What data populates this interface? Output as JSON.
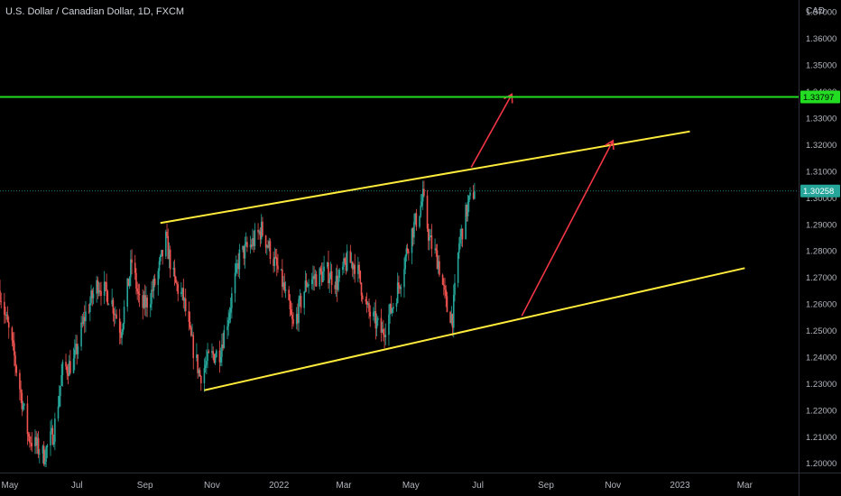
{
  "chart_data": {
    "type": "candlestick",
    "title": "U.S. Dollar / Canadian Dollar, 1D, FXCM",
    "currency": "CAD",
    "x_ticks": [
      "May",
      "Jul",
      "Sep",
      "Nov",
      "2022",
      "Mar",
      "May",
      "Jul",
      "Sep",
      "Nov",
      "2023",
      "Mar"
    ],
    "x_tick_dates": [
      "2021-05-01",
      "2021-07-01",
      "2021-09-01",
      "2021-11-01",
      "2022-01-01",
      "2022-03-01",
      "2022-05-01",
      "2022-07-01",
      "2022-09-01",
      "2022-11-01",
      "2023-01-01",
      "2023-03-01"
    ],
    "y_ticks": [
      "1.37000",
      "1.36000",
      "1.35000",
      "1.34000",
      "1.33000",
      "1.32000",
      "1.31000",
      "1.30000",
      "1.29000",
      "1.28000",
      "1.27000",
      "1.26000",
      "1.25000",
      "1.24000",
      "1.23000",
      "1.22000",
      "1.21000",
      "1.20000"
    ],
    "ylim": [
      1.1965,
      1.3745
    ],
    "xlim": [
      "2021-04-22",
      "2023-04-19"
    ],
    "price_label": "1.30258",
    "last_price": 1.30258,
    "horizontal_level": {
      "label": "1.33797",
      "value": 1.33797,
      "color": "#22dd22"
    },
    "price_path": [
      [
        "2021-04-22",
        1.265
      ],
      [
        "2021-05-05",
        1.24
      ],
      [
        "2021-05-18",
        1.21
      ],
      [
        "2021-06-01",
        1.203
      ],
      [
        "2021-06-10",
        1.212
      ],
      [
        "2021-06-18",
        1.235
      ],
      [
        "2021-06-28",
        1.238
      ],
      [
        "2021-07-08",
        1.255
      ],
      [
        "2021-07-20",
        1.268
      ],
      [
        "2021-08-01",
        1.262
      ],
      [
        "2021-08-10",
        1.25
      ],
      [
        "2021-08-20",
        1.276
      ],
      [
        "2021-08-28",
        1.258
      ],
      [
        "2021-09-05",
        1.262
      ],
      [
        "2021-09-12",
        1.27
      ],
      [
        "2021-09-20",
        1.284
      ],
      [
        "2021-09-28",
        1.268
      ],
      [
        "2021-10-06",
        1.262
      ],
      [
        "2021-10-12",
        1.248
      ],
      [
        "2021-10-21",
        1.233
      ],
      [
        "2021-10-30",
        1.24
      ],
      [
        "2021-11-08",
        1.242
      ],
      [
        "2021-11-16",
        1.256
      ],
      [
        "2021-11-26",
        1.278
      ],
      [
        "2021-12-06",
        1.282
      ],
      [
        "2021-12-16",
        1.288
      ],
      [
        "2021-12-24",
        1.28
      ],
      [
        "2022-01-04",
        1.268
      ],
      [
        "2022-01-14",
        1.251
      ],
      [
        "2022-01-26",
        1.268
      ],
      [
        "2022-02-03",
        1.27
      ],
      [
        "2022-02-14",
        1.272
      ],
      [
        "2022-02-23",
        1.268
      ],
      [
        "2022-03-04",
        1.276
      ],
      [
        "2022-03-12",
        1.275
      ],
      [
        "2022-03-22",
        1.258
      ],
      [
        "2022-04-05",
        1.249
      ],
      [
        "2022-04-15",
        1.26
      ],
      [
        "2022-04-22",
        1.27
      ],
      [
        "2022-04-30",
        1.285
      ],
      [
        "2022-05-08",
        1.294
      ],
      [
        "2022-05-12",
        1.3
      ],
      [
        "2022-05-18",
        1.284
      ],
      [
        "2022-05-26",
        1.276
      ],
      [
        "2022-06-03",
        1.258
      ],
      [
        "2022-06-08",
        1.255
      ],
      [
        "2022-06-14",
        1.283
      ],
      [
        "2022-06-22",
        1.297
      ],
      [
        "2022-06-28",
        1.303
      ]
    ],
    "drawings": {
      "upper_trendline": {
        "color": "#ffeb3b",
        "from": [
          "2021-09-15",
          1.2905
        ],
        "to": [
          "2023-01-10",
          1.325
        ]
      },
      "lower_trendline": {
        "color": "#ffeb3b",
        "from": [
          "2021-10-25",
          1.2275
        ],
        "to": [
          "2023-03-01",
          1.2735
        ]
      },
      "arrows": [
        {
          "color": "#f23645",
          "from": [
            "2022-06-25",
            1.3115
          ],
          "to": [
            "2022-08-01",
            1.339
          ]
        },
        {
          "color": "#f23645",
          "from": [
            "2022-08-10",
            1.2555
          ],
          "to": [
            "2022-11-01",
            1.3215
          ]
        }
      ]
    },
    "grid": false,
    "legend": "none"
  }
}
